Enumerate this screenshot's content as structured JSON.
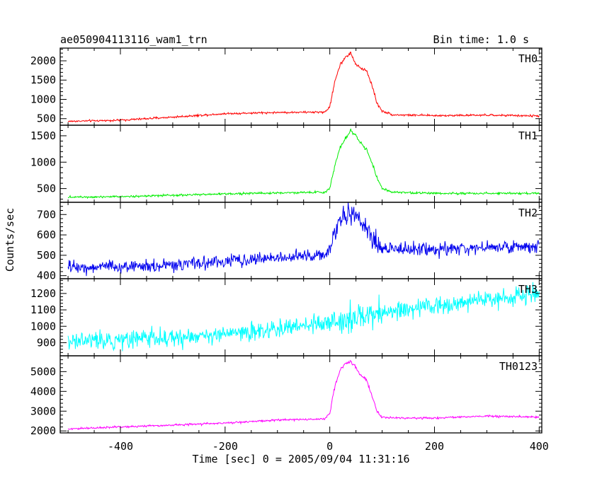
{
  "header": {
    "title": "ae050904113116_wam1_trn",
    "bin_time": "Bin time: 1.0 s"
  },
  "chart_data": {
    "type": "line",
    "title": "ae050904113116_wam1_trn",
    "xlabel": "Time [sec] 0 = 2005/09/04 11:31:16",
    "ylabel": "Counts/sec",
    "xlim": [
      -515,
      405
    ],
    "x_ticks": [
      -400,
      -200,
      0,
      200,
      400
    ],
    "grid": false,
    "legend": "none",
    "panels": [
      {
        "name": "TH0",
        "color": "#ff0000",
        "ylim": [
          330,
          2330
        ],
        "y_ticks": [
          500,
          1000,
          1500,
          2000
        ],
        "noise": 18,
        "x": [
          -500,
          -400,
          -300,
          -200,
          -100,
          -10,
          0,
          10,
          20,
          30,
          40,
          50,
          60,
          70,
          80,
          90,
          100,
          120,
          200,
          300,
          400
        ],
        "y": [
          430,
          460,
          540,
          630,
          660,
          670,
          800,
          1500,
          1900,
          2100,
          2200,
          1900,
          1800,
          1750,
          1400,
          900,
          700,
          600,
          580,
          590,
          570
        ]
      },
      {
        "name": "TH1",
        "color": "#00ee00",
        "ylim": [
          240,
          1700
        ],
        "y_ticks": [
          500,
          1000,
          1500
        ],
        "noise": 14,
        "x": [
          -500,
          -400,
          -300,
          -200,
          -100,
          -10,
          0,
          10,
          20,
          30,
          40,
          50,
          60,
          70,
          80,
          90,
          100,
          120,
          200,
          300,
          400
        ],
        "y": [
          340,
          350,
          370,
          400,
          420,
          430,
          500,
          950,
          1300,
          1450,
          1600,
          1500,
          1350,
          1250,
          1000,
          700,
          500,
          430,
          410,
          410,
          410
        ]
      },
      {
        "name": "TH2",
        "color": "#0000ee",
        "ylim": [
          385,
          760
        ],
        "y_ticks": [
          400,
          500,
          600,
          700
        ],
        "noise": 22,
        "x": [
          -500,
          -400,
          -300,
          -200,
          -100,
          -10,
          0,
          10,
          20,
          30,
          40,
          50,
          60,
          70,
          80,
          90,
          100,
          120,
          200,
          300,
          400
        ],
        "y": [
          440,
          445,
          450,
          470,
          490,
          500,
          530,
          620,
          680,
          700,
          700,
          690,
          650,
          630,
          580,
          560,
          540,
          530,
          530,
          540,
          540
        ]
      },
      {
        "name": "TH3",
        "color": "#00ffff",
        "ylim": [
          820,
          1290
        ],
        "y_ticks": [
          900,
          1000,
          1100,
          1200
        ],
        "noise": 38,
        "x": [
          -500,
          -400,
          -300,
          -200,
          -100,
          0,
          100,
          200,
          300,
          400
        ],
        "y": [
          910,
          920,
          930,
          950,
          980,
          1030,
          1080,
          1120,
          1160,
          1200
        ]
      },
      {
        "name": "TH0123",
        "color": "#ff00ff",
        "ylim": [
          1900,
          5800
        ],
        "y_ticks": [
          2000,
          3000,
          4000,
          5000
        ],
        "noise": 35,
        "x": [
          -500,
          -400,
          -300,
          -200,
          -100,
          -10,
          0,
          10,
          20,
          30,
          40,
          50,
          60,
          70,
          80,
          90,
          100,
          120,
          200,
          300,
          400
        ],
        "y": [
          2100,
          2200,
          2300,
          2400,
          2550,
          2600,
          2900,
          4300,
          5100,
          5400,
          5500,
          5200,
          4800,
          4600,
          3800,
          3000,
          2700,
          2650,
          2650,
          2750,
          2700
        ]
      }
    ]
  }
}
